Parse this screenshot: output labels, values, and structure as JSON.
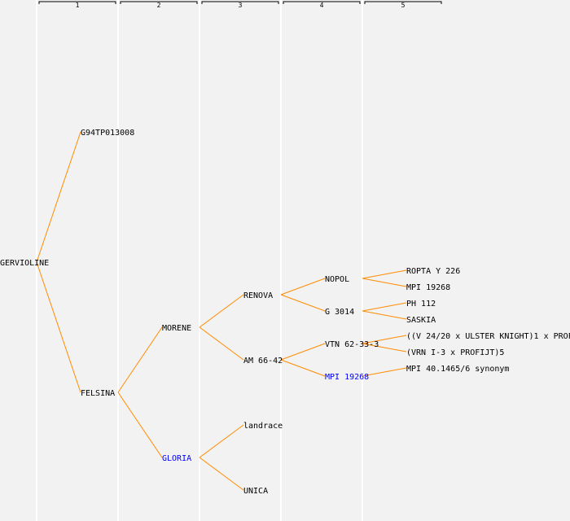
{
  "colors": {
    "background": "#f2f2f2",
    "separator": "#ffffff",
    "edge": "#ff8c00",
    "text": "#000000",
    "highlight": "#0000ff"
  },
  "generations": [
    "1",
    "2",
    "3",
    "4",
    "5"
  ],
  "tree": {
    "nodes": [
      {
        "id": "n0",
        "label": "GERVIOLINE",
        "generation": 0,
        "highlight": false
      },
      {
        "id": "n1",
        "label": "G94TP013008",
        "generation": 1,
        "parent": "n0",
        "highlight": false
      },
      {
        "id": "n2",
        "label": "FELSINA",
        "generation": 1,
        "parent": "n0",
        "highlight": false
      },
      {
        "id": "n3",
        "label": "MORENE",
        "generation": 2,
        "parent": "n2",
        "highlight": false
      },
      {
        "id": "n4",
        "label": "GLORIA",
        "generation": 2,
        "parent": "n2",
        "highlight": true
      },
      {
        "id": "n5",
        "label": "RENOVA",
        "generation": 3,
        "parent": "n3",
        "highlight": false
      },
      {
        "id": "n6",
        "label": "AM 66-42",
        "generation": 3,
        "parent": "n3",
        "highlight": false
      },
      {
        "id": "n7",
        "label": "landrace",
        "generation": 3,
        "parent": "n4",
        "highlight": false
      },
      {
        "id": "n8",
        "label": "UNICA",
        "generation": 3,
        "parent": "n4",
        "highlight": false
      },
      {
        "id": "n9",
        "label": "NOPOL",
        "generation": 4,
        "parent": "n5",
        "highlight": false
      },
      {
        "id": "n10",
        "label": "G 3014",
        "generation": 4,
        "parent": "n5",
        "highlight": false
      },
      {
        "id": "n11",
        "label": "VTN 62-33-3",
        "generation": 4,
        "parent": "n6",
        "highlight": false
      },
      {
        "id": "n12",
        "label": "MPI 19268",
        "generation": 4,
        "parent": "n6",
        "highlight": true
      },
      {
        "id": "n13",
        "label": "ROPTA Y 226",
        "generation": 5,
        "parent": "n9",
        "highlight": false
      },
      {
        "id": "n14",
        "label": "MPI 19268",
        "generation": 5,
        "parent": "n9",
        "highlight": false
      },
      {
        "id": "n15",
        "label": "PH 112",
        "generation": 5,
        "parent": "n10",
        "highlight": false
      },
      {
        "id": "n16",
        "label": "SASKIA",
        "generation": 5,
        "parent": "n10",
        "highlight": false
      },
      {
        "id": "n17",
        "label": "((V 24/20 x ULSTER KNIGHT)1 x PROF",
        "generation": 5,
        "parent": "n11",
        "highlight": false
      },
      {
        "id": "n18",
        "label": "(VRN I-3 x PROFIJT)5",
        "generation": 5,
        "parent": "n11",
        "highlight": false
      },
      {
        "id": "n19",
        "label": "MPI 40.1465/6 synonym",
        "generation": 5,
        "parent": "n12",
        "highlight": false
      }
    ]
  }
}
